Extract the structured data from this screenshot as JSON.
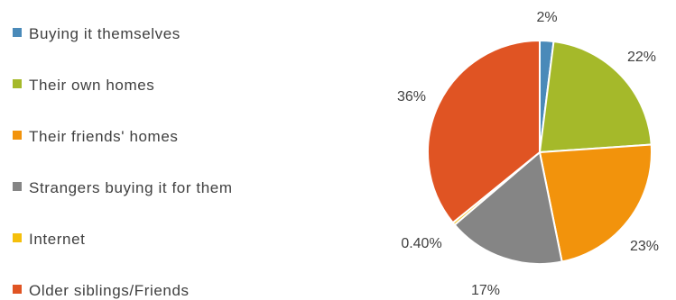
{
  "chart_data": {
    "type": "pie",
    "categories": [
      "Buying it themselves",
      "Their own homes",
      "Their friends' homes",
      "Strangers buying it for them",
      "Internet",
      "Older siblings/Friends"
    ],
    "values": [
      2,
      22,
      23,
      17,
      0.4,
      36
    ],
    "data_labels": [
      "2%",
      "22%",
      "23%",
      "17%",
      "0.40%",
      "36%"
    ],
    "colors": [
      "#4a8ab9",
      "#a5b92a",
      "#f2930c",
      "#858585",
      "#f5bf0b",
      "#e05423"
    ],
    "legend_position": "left"
  }
}
